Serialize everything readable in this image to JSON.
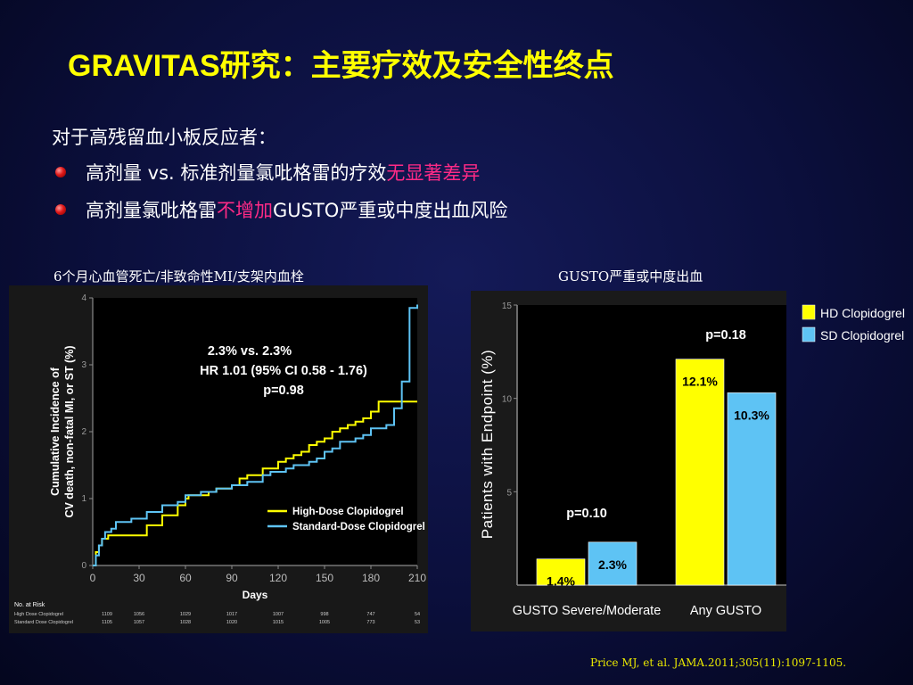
{
  "slide": {
    "title": "GRAVITAS研究：主要疗效及安全性终点",
    "intro": "对于高残留血小板反应者：",
    "bullets": [
      {
        "pre": "高剂量 vs. 标准剂量氯吡格雷的疗效",
        "highlight": "无显著差异",
        "post": ""
      },
      {
        "pre": "高剂量氯吡格雷",
        "highlight": "不增加",
        "post": "GUSTO严重或中度出血风险"
      }
    ],
    "left_caption": "6个月心血管死亡/非致命性MI/支架内血栓",
    "right_caption": "GUSTO严重或中度出血",
    "citation": "Price MJ, et al. JAMA.2011;305(11):1097-1105.",
    "colors": {
      "title": "#ffff00",
      "highlight": "#ff2a86",
      "hd": "#ffff00",
      "sd": "#5ec3f4"
    }
  },
  "chart_data": [
    {
      "type": "line",
      "title": "",
      "xlabel": "Days",
      "ylabel": "Cumulative Incidence of CV death, non-fatal MI, or ST (%)",
      "xlim": [
        0,
        210
      ],
      "ylim": [
        0,
        4
      ],
      "xticks": [
        0,
        30,
        60,
        90,
        120,
        150,
        180,
        210
      ],
      "yticks": [
        0,
        1,
        2,
        3,
        4
      ],
      "annotation": [
        "2.3% vs. 2.3%",
        "HR 1.01 (95% CI  0.58 - 1.76)",
        "p=0.98"
      ],
      "legend": "bottom-right",
      "series": [
        {
          "name": "High-Dose Clopidogrel",
          "color": "#ffff00",
          "x": [
            0,
            2,
            4,
            6,
            10,
            14,
            18,
            35,
            45,
            55,
            60,
            62,
            75,
            80,
            90,
            95,
            100,
            110,
            115,
            120,
            125,
            130,
            135,
            140,
            145,
            150,
            155,
            160,
            165,
            170,
            175,
            180,
            185,
            190,
            210
          ],
          "y": [
            0,
            0.2,
            0.3,
            0.4,
            0.45,
            0.45,
            0.45,
            0.6,
            0.75,
            0.9,
            1.0,
            1.05,
            1.1,
            1.15,
            1.2,
            1.3,
            1.35,
            1.45,
            1.45,
            1.55,
            1.6,
            1.65,
            1.7,
            1.8,
            1.85,
            1.9,
            2.0,
            2.05,
            2.1,
            2.15,
            2.2,
            2.3,
            2.45,
            2.45,
            2.45
          ]
        },
        {
          "name": "Standard-Dose Clopidogrel",
          "color": "#5ec3f4",
          "x": [
            0,
            2,
            4,
            6,
            8,
            12,
            15,
            25,
            35,
            45,
            55,
            60,
            70,
            80,
            90,
            100,
            110,
            115,
            120,
            125,
            130,
            140,
            145,
            150,
            155,
            160,
            170,
            175,
            180,
            190,
            195,
            200,
            205,
            210
          ],
          "y": [
            0,
            0.15,
            0.3,
            0.4,
            0.5,
            0.55,
            0.65,
            0.7,
            0.8,
            0.9,
            0.95,
            1.05,
            1.1,
            1.15,
            1.2,
            1.25,
            1.35,
            1.4,
            1.4,
            1.45,
            1.5,
            1.55,
            1.6,
            1.7,
            1.75,
            1.85,
            1.9,
            1.95,
            2.05,
            2.1,
            2.35,
            2.75,
            3.85,
            3.9
          ]
        }
      ],
      "risk_table": {
        "header": "No. at Risk",
        "rows": [
          {
            "label": "High Dose Clopidogrel",
            "values": [
              1109,
              1056,
              1029,
              1017,
              1007,
              998,
              747,
              54
            ]
          },
          {
            "label": "Standard Dose Clopidogrel",
            "values": [
              1105,
              1057,
              1028,
              1020,
              1015,
              1005,
              773,
              53
            ]
          }
        ]
      }
    },
    {
      "type": "bar",
      "title": "",
      "xlabel": "",
      "ylabel": "Patients with Endpoint (%)",
      "ylim": [
        0,
        15
      ],
      "yticks": [
        5,
        10,
        15
      ],
      "categories": [
        "GUSTO Severe/Moderate",
        "Any GUSTO"
      ],
      "series": [
        {
          "name": "HD Clopidogrel",
          "color": "#ffff00",
          "values": [
            1.4,
            12.1
          ],
          "labels": [
            "1.4%",
            "12.1%"
          ]
        },
        {
          "name": "SD Clopidogrel",
          "color": "#5ec3f4",
          "values": [
            2.3,
            10.3
          ],
          "labels": [
            "2.3%",
            "10.3%"
          ]
        }
      ],
      "pvalues": [
        "p=0.10",
        "p=0.18"
      ],
      "legend": "top-right"
    }
  ]
}
